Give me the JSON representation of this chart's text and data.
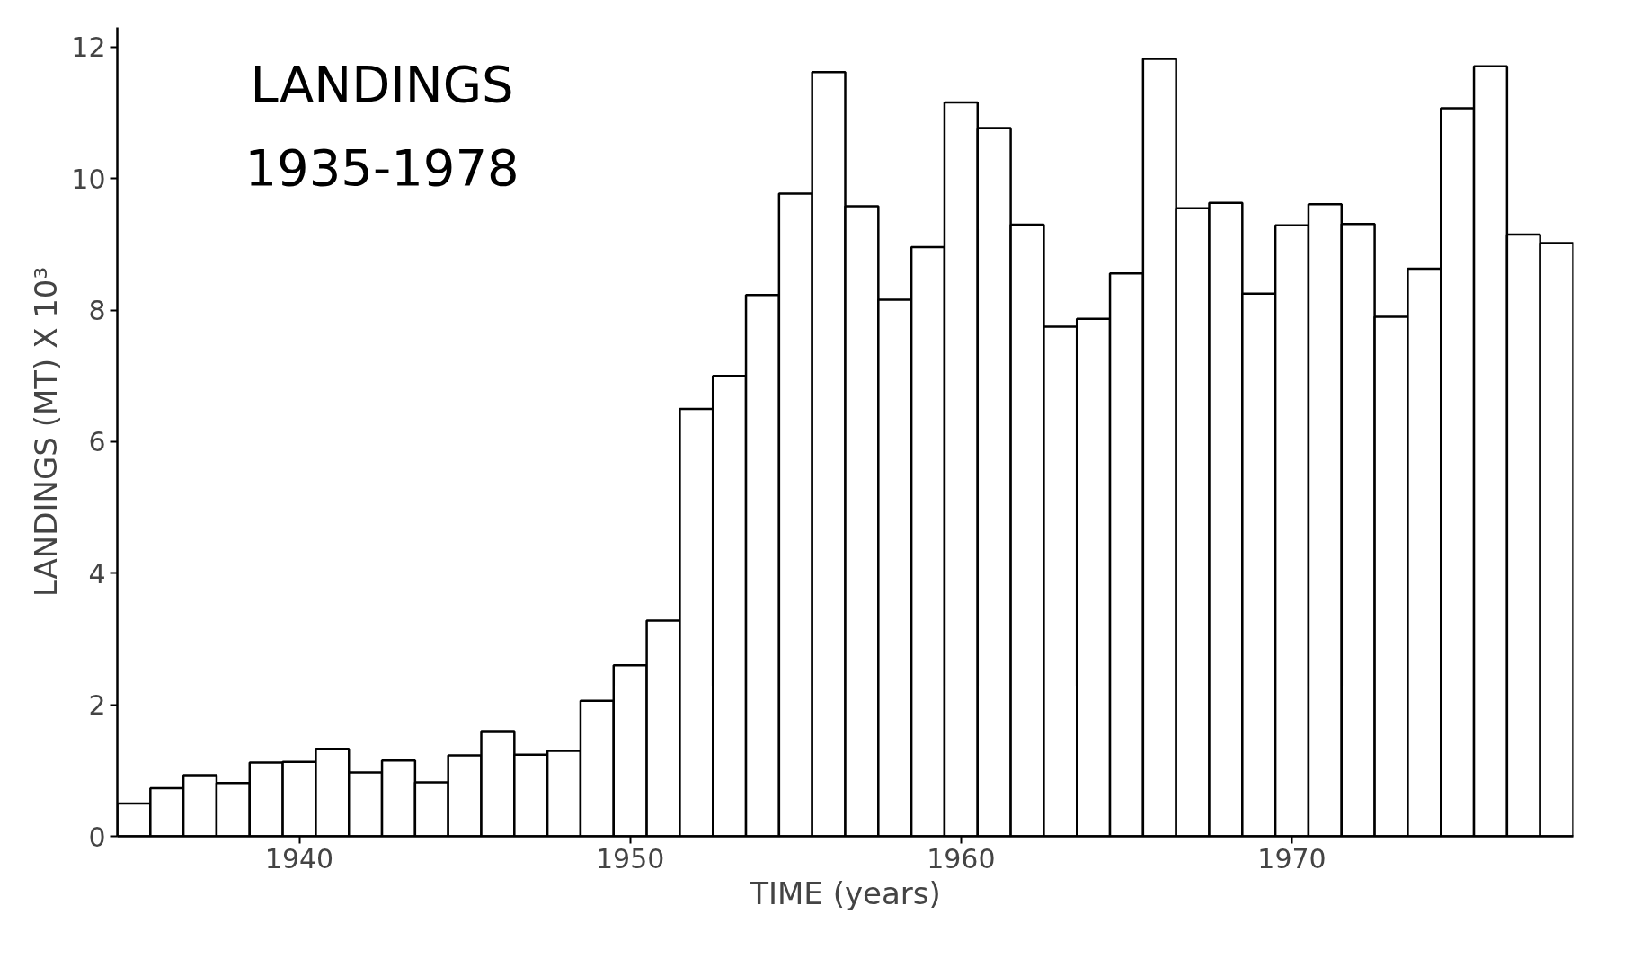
{
  "chart_data": {
    "type": "bar",
    "title": "LANDINGS",
    "subtitle": "1935-1978",
    "xlabel": "TIME (years)",
    "ylabel": "LANDINGS (MT) X 10³",
    "x": [
      1935,
      1936,
      1937,
      1938,
      1939,
      1940,
      1941,
      1942,
      1943,
      1944,
      1945,
      1946,
      1947,
      1948,
      1949,
      1950,
      1951,
      1952,
      1953,
      1954,
      1955,
      1956,
      1957,
      1958,
      1959,
      1960,
      1961,
      1962,
      1963,
      1964,
      1965,
      1966,
      1967,
      1968,
      1969,
      1970,
      1971,
      1972,
      1973,
      1974,
      1975,
      1976,
      1977,
      1978
    ],
    "values": [
      0.5,
      0.73,
      0.93,
      0.81,
      1.12,
      1.13,
      1.33,
      0.97,
      1.15,
      0.82,
      1.23,
      1.6,
      1.24,
      1.3,
      2.06,
      2.6,
      3.28,
      6.5,
      7.0,
      8.23,
      9.77,
      11.62,
      9.58,
      8.16,
      8.96,
      11.16,
      10.77,
      9.3,
      7.75,
      7.87,
      8.56,
      11.82,
      9.55,
      9.63,
      8.25,
      9.29,
      9.61,
      9.31,
      7.9,
      8.63,
      11.07,
      11.71,
      9.15,
      9.02
    ],
    "color": "#ffffff",
    "xlim": [
      1934.5,
      1978.5
    ],
    "ylim": [
      0,
      12.3
    ],
    "xticks": [
      1940,
      1950,
      1960,
      1970
    ],
    "yticks": [
      0,
      2,
      4,
      6,
      8,
      10,
      12
    ],
    "grid": false
  }
}
